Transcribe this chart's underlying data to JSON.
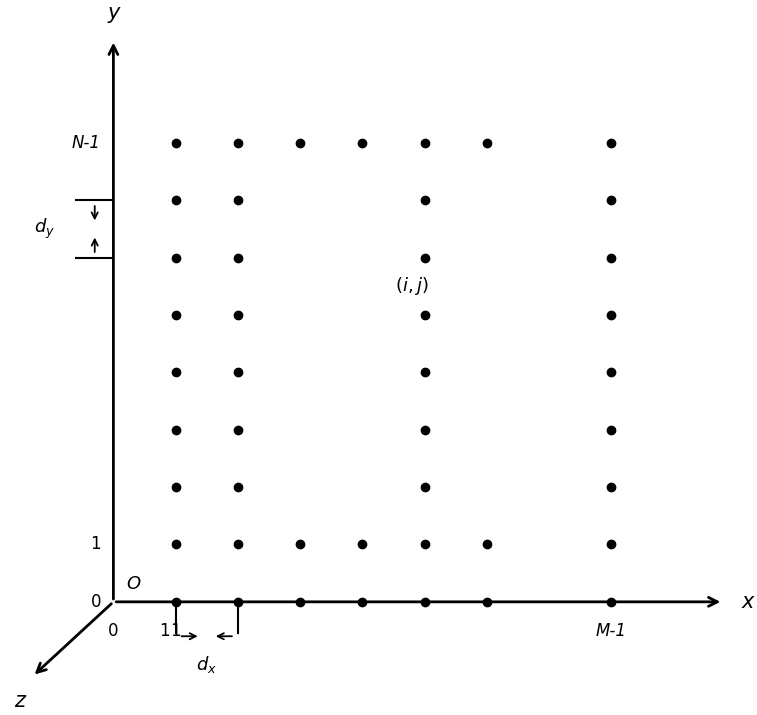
{
  "background_color": "#ffffff",
  "fig_width": 7.57,
  "fig_height": 7.15,
  "dpi": 100,
  "axes": {
    "x_axis_label": "x",
    "y_axis_label": "y",
    "z_axis_label": "z",
    "o_label": "O"
  },
  "label_fontsize": 13,
  "axis_label_fontsize": 15,
  "ij_fontsize": 13,
  "xlim": [
    -1.8,
    10.2
  ],
  "ylim": [
    -1.8,
    10.2
  ],
  "dot_color": "#000000",
  "dot_size": 6
}
